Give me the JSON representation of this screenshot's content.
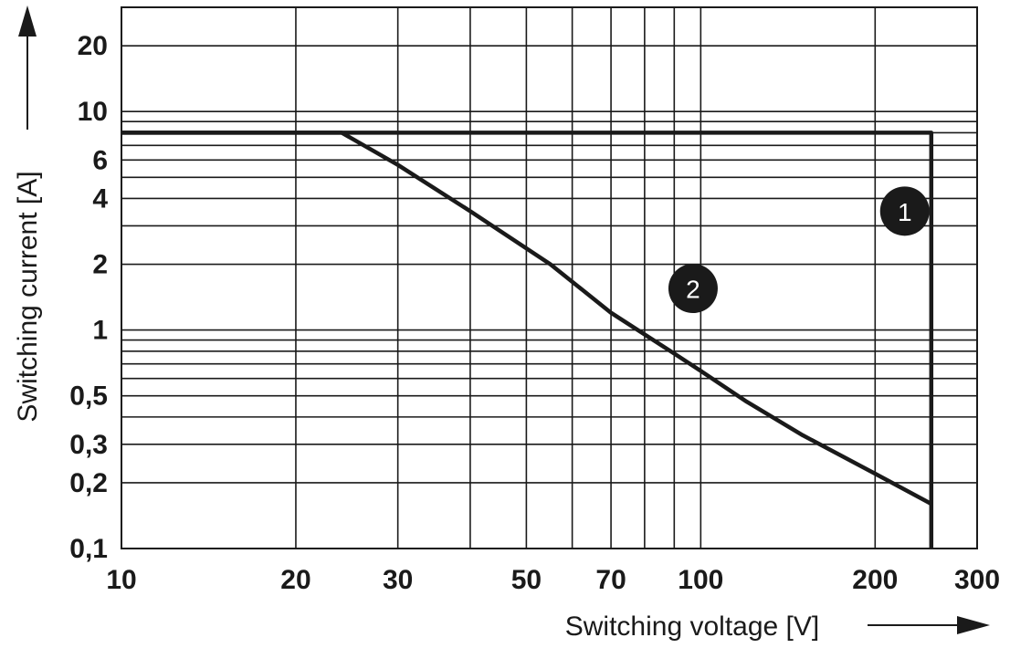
{
  "chart_data": {
    "type": "line",
    "xlabel": "Switching voltage [V]",
    "ylabel": "Switching current [A]",
    "x_scale": "log",
    "y_scale": "log",
    "xlim": [
      10,
      300
    ],
    "ylim": [
      0.1,
      30
    ],
    "grid": true,
    "x_ticks": [
      {
        "value": 10,
        "label": "10"
      },
      {
        "value": 20,
        "label": "20"
      },
      {
        "value": 30,
        "label": "30"
      },
      {
        "value": 50,
        "label": "50"
      },
      {
        "value": 70,
        "label": "70"
      },
      {
        "value": 100,
        "label": "100"
      },
      {
        "value": 200,
        "label": "200"
      },
      {
        "value": 300,
        "label": "300"
      }
    ],
    "y_ticks": [
      {
        "value": 0.1,
        "label": "0,1"
      },
      {
        "value": 0.2,
        "label": "0,2"
      },
      {
        "value": 0.3,
        "label": "0,3"
      },
      {
        "value": 0.5,
        "label": "0,5"
      },
      {
        "value": 1,
        "label": "1"
      },
      {
        "value": 2,
        "label": "2"
      },
      {
        "value": 4,
        "label": "4"
      },
      {
        "value": 6,
        "label": "6"
      },
      {
        "value": 10,
        "label": "10"
      },
      {
        "value": 20,
        "label": "20"
      }
    ],
    "x_grid": [
      20,
      30,
      40,
      50,
      60,
      70,
      80,
      90,
      100,
      200
    ],
    "y_grid": [
      0.2,
      0.3,
      0.4,
      0.5,
      0.6,
      0.7,
      0.8,
      0.9,
      1,
      2,
      3,
      4,
      5,
      6,
      7,
      8,
      9,
      10,
      20
    ],
    "series": [
      {
        "name": "1",
        "x": [
          10,
          250,
          250
        ],
        "y": [
          8,
          8,
          0.1
        ]
      },
      {
        "name": "2",
        "x": [
          10,
          24,
          30,
          40,
          55,
          70,
          90,
          100,
          120,
          150,
          200,
          250
        ],
        "y": [
          8,
          8,
          5.7,
          3.5,
          2,
          1.2,
          0.78,
          0.65,
          0.47,
          0.33,
          0.22,
          0.16
        ]
      }
    ],
    "annotations": [
      {
        "label": "1",
        "x": 225,
        "y": 3.5
      },
      {
        "label": "2",
        "x": 97,
        "y": 1.55
      }
    ]
  }
}
